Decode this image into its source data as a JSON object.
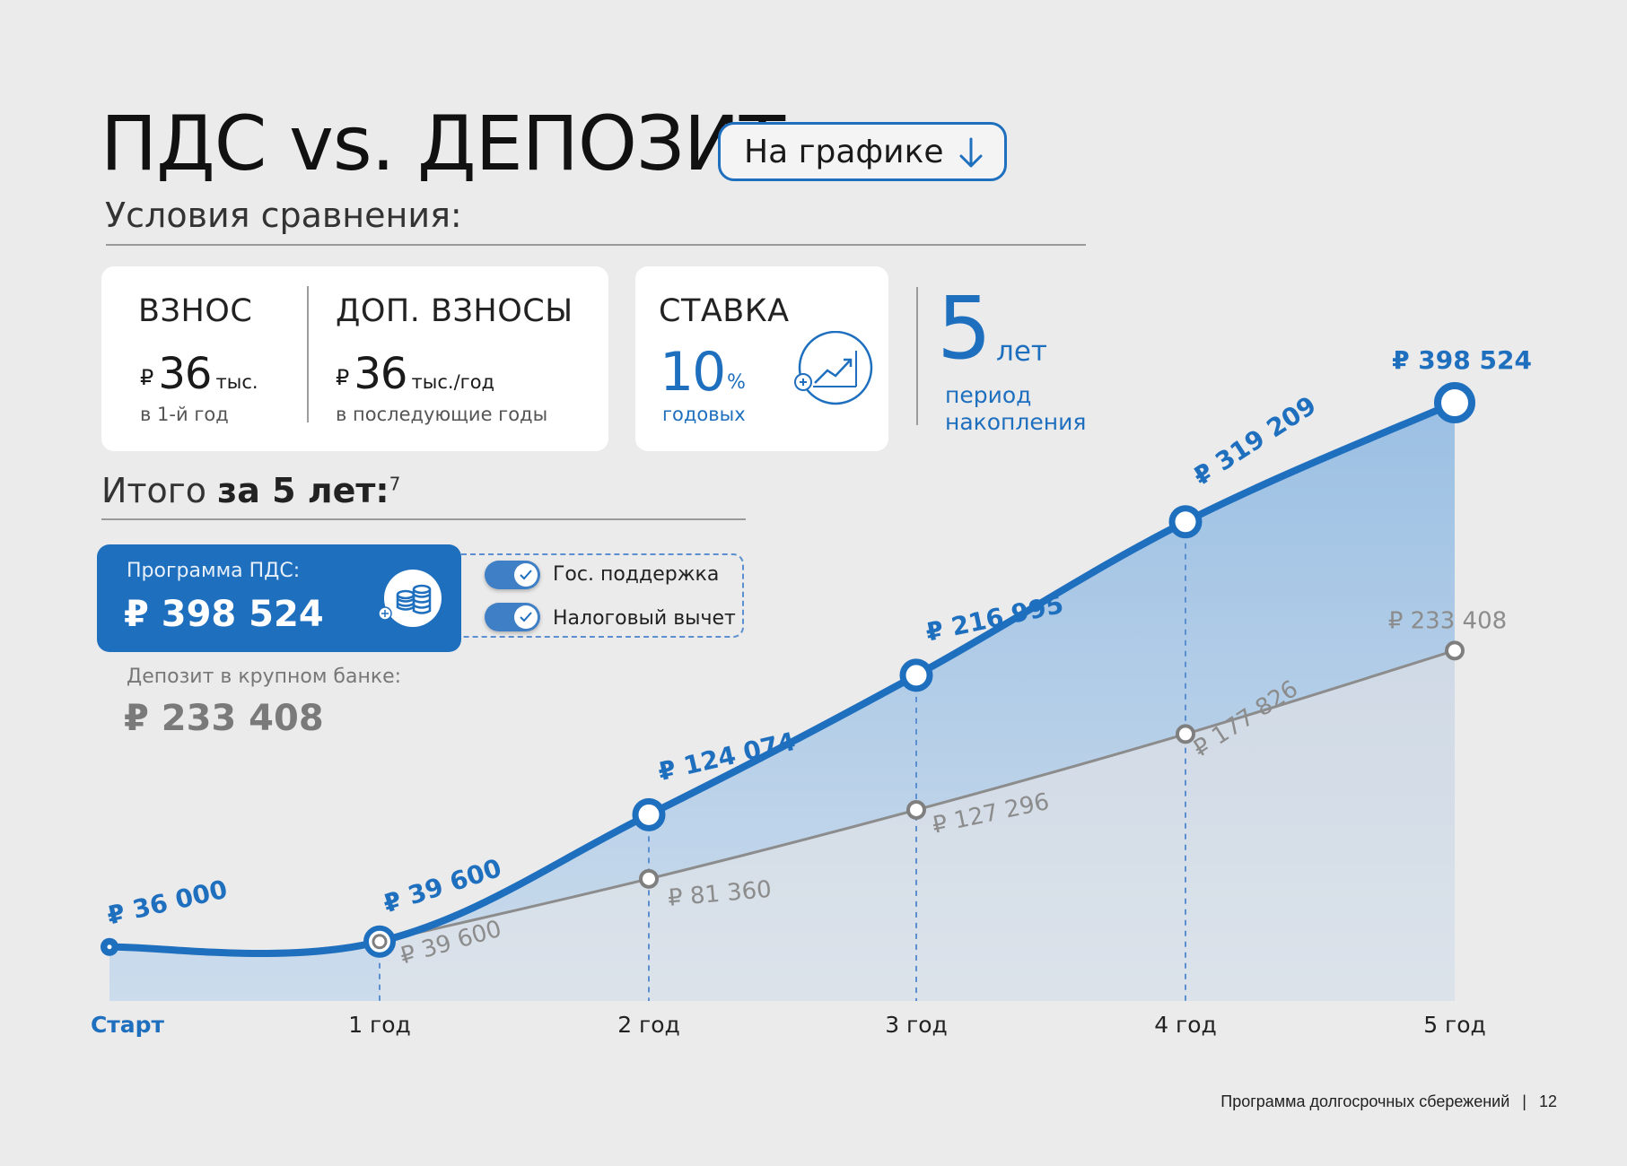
{
  "header": {
    "title": "ПДС vs. ДЕПОЗИТ",
    "graph_button": "На графике",
    "conditions": "Условия сравнения:"
  },
  "conditions": {
    "contribution": {
      "label": "ВЗНОС",
      "currency": "₽",
      "value": "36",
      "unit": "тыс.",
      "note": "в 1-й год"
    },
    "additional": {
      "label": "ДОП. ВЗНОСЫ",
      "currency": "₽",
      "value": "36",
      "unit": "тыс./год",
      "note": "в последующие годы"
    },
    "rate": {
      "label": "СТАВКА",
      "value": "10",
      "unit": "%",
      "note": "годовых"
    },
    "period": {
      "value": "5",
      "unit": "лет",
      "note": "период накопления"
    }
  },
  "totals": {
    "title_prefix": "Итого",
    "title_bold": "за 5 лет:",
    "footnote": "7",
    "pds_label": "Программа ПДС:",
    "pds_value": "₽ 398 524",
    "option1": "Гос. поддержка",
    "option2": "Налоговый вычет",
    "deposit_label": "Депозит в крупном банке:",
    "deposit_value": "₽ 233 408"
  },
  "chart_data": {
    "type": "area",
    "categories": [
      "Старт",
      "1 год",
      "2 год",
      "3 год",
      "4 год",
      "5 год"
    ],
    "series": [
      {
        "key": "pds",
        "values": [
          36000,
          39600,
          124074,
          216995,
          319209,
          398524
        ],
        "labels": [
          "₽ 36 000",
          "₽ 39 600",
          "₽ 124 074",
          "₽ 216 995",
          "₽ 319 209",
          "₽ 398 524"
        ],
        "color": "#1f6fbf"
      },
      {
        "key": "deposit",
        "values": [
          null,
          39600,
          81360,
          127296,
          177826,
          233408
        ],
        "labels": [
          "",
          "₽ 39 600",
          "₽ 81 360",
          "₽ 127 296",
          "₽ 177 826",
          "₽ 233 408"
        ],
        "color": "#8c8c8c"
      }
    ],
    "ylim": [
      0,
      398524
    ],
    "grid": false,
    "legend": "none"
  },
  "footer": {
    "text": "Программа долгосрочных сбережений",
    "page": "12"
  },
  "colors": {
    "accent": "#1f6fbf",
    "gray": "#8c8c8c",
    "background": "#ebebeb"
  }
}
